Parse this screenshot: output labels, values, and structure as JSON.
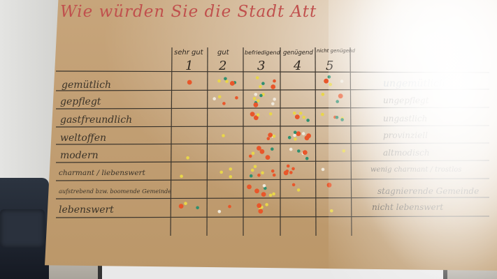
{
  "title": "Wie würden Sie die Stadt Att",
  "columns": [
    {
      "label": "sehr gut",
      "number": "1"
    },
    {
      "label": "gut",
      "number": "2"
    },
    {
      "label": "befriedigend",
      "number": "3"
    },
    {
      "label": "genügend",
      "number": "4"
    },
    {
      "label": "nicht genügend",
      "number": "5"
    }
  ],
  "rows": [
    {
      "left": "gemütlich",
      "right": "ungemütlich"
    },
    {
      "left": "gepflegt",
      "right": "ungepflegt"
    },
    {
      "left": "gastfreundlich",
      "right": "ungastlich"
    },
    {
      "left": "weltoffen",
      "right": "provinziell"
    },
    {
      "left": "modern",
      "right": "altmodisch"
    },
    {
      "left": "charmant / liebenswert",
      "right": "wenig charmant / trostlos"
    },
    {
      "left": "aufstrebend bzw. boomende Gemeinde",
      "right": "stagnierende Gemeinde"
    },
    {
      "left": "lebenswert",
      "right": "nicht lebenswert"
    }
  ],
  "dot_colors": {
    "yellow": "#e8d64a",
    "green": "#2f8f6e",
    "orange": "#e8562a",
    "white": "#efe9dc"
  },
  "dot_counts": [
    {
      "row": "gemütlich",
      "col1": 1,
      "col2": 5,
      "col3": 5,
      "col4": 0,
      "col5": 4
    },
    {
      "row": "gepflegt",
      "col1": 0,
      "col2": 4,
      "col3": 9,
      "col4": 0,
      "col5": 3
    },
    {
      "row": "gastfreundlich",
      "col1": 0,
      "col2": 0,
      "col3": 4,
      "col4": 5,
      "col5": 5
    },
    {
      "row": "weltoffen",
      "col1": 0,
      "col2": 1,
      "col3": 4,
      "col4": 8,
      "col5": 0
    },
    {
      "row": "modern",
      "col1": 1,
      "col2": 0,
      "col3": 6,
      "col4": 5,
      "col5": 1
    },
    {
      "row": "charmant / liebenswert",
      "col1": 1,
      "col2": 3,
      "col3": 7,
      "col4": 5,
      "col5": 1
    },
    {
      "row": "aufstrebend bzw. boomende Gemeinde",
      "col1": 0,
      "col2": 0,
      "col3": 7,
      "col4": 2,
      "col5": 1
    },
    {
      "row": "lebenswert",
      "col1": 3,
      "col2": 2,
      "col3": 5,
      "col4": 0,
      "col5": 1
    }
  ]
}
